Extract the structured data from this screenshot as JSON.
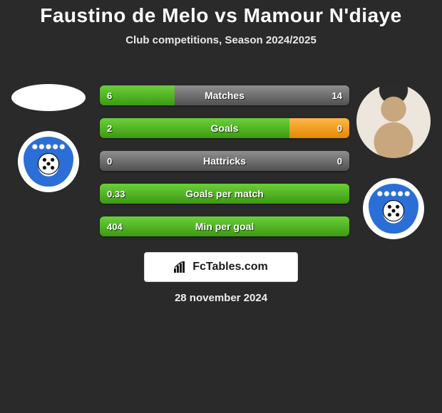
{
  "title": "Faustino de Melo vs Mamour N'diaye",
  "subtitle": "Club competitions, Season 2024/2025",
  "date": "28 november 2024",
  "branding": "FcTables.com",
  "colors": {
    "green": "#3c9a12",
    "grey": "#505050",
    "orange": "#e38a00",
    "background": "#2a2a2a",
    "text": "#ffffff"
  },
  "players": {
    "left": {
      "name": "Faustino de Melo",
      "photo": "none"
    },
    "right": {
      "name": "Mamour N'diaye",
      "photo": "present"
    }
  },
  "stats": [
    {
      "label": "Matches",
      "left_val": "6",
      "right_val": "14",
      "left_pct": 30,
      "left_color": "green",
      "right_color": "grey"
    },
    {
      "label": "Goals",
      "left_val": "2",
      "right_val": "0",
      "left_pct": 76,
      "left_color": "green",
      "right_color": "orange"
    },
    {
      "label": "Hattricks",
      "left_val": "0",
      "right_val": "0",
      "left_pct": 50,
      "left_color": "grey",
      "right_color": "grey"
    },
    {
      "label": "Goals per match",
      "left_val": "0.33",
      "right_val": "",
      "left_pct": 100,
      "left_color": "green",
      "right_color": "green"
    },
    {
      "label": "Min per goal",
      "left_val": "404",
      "right_val": "",
      "left_pct": 100,
      "left_color": "green",
      "right_color": "green"
    }
  ]
}
